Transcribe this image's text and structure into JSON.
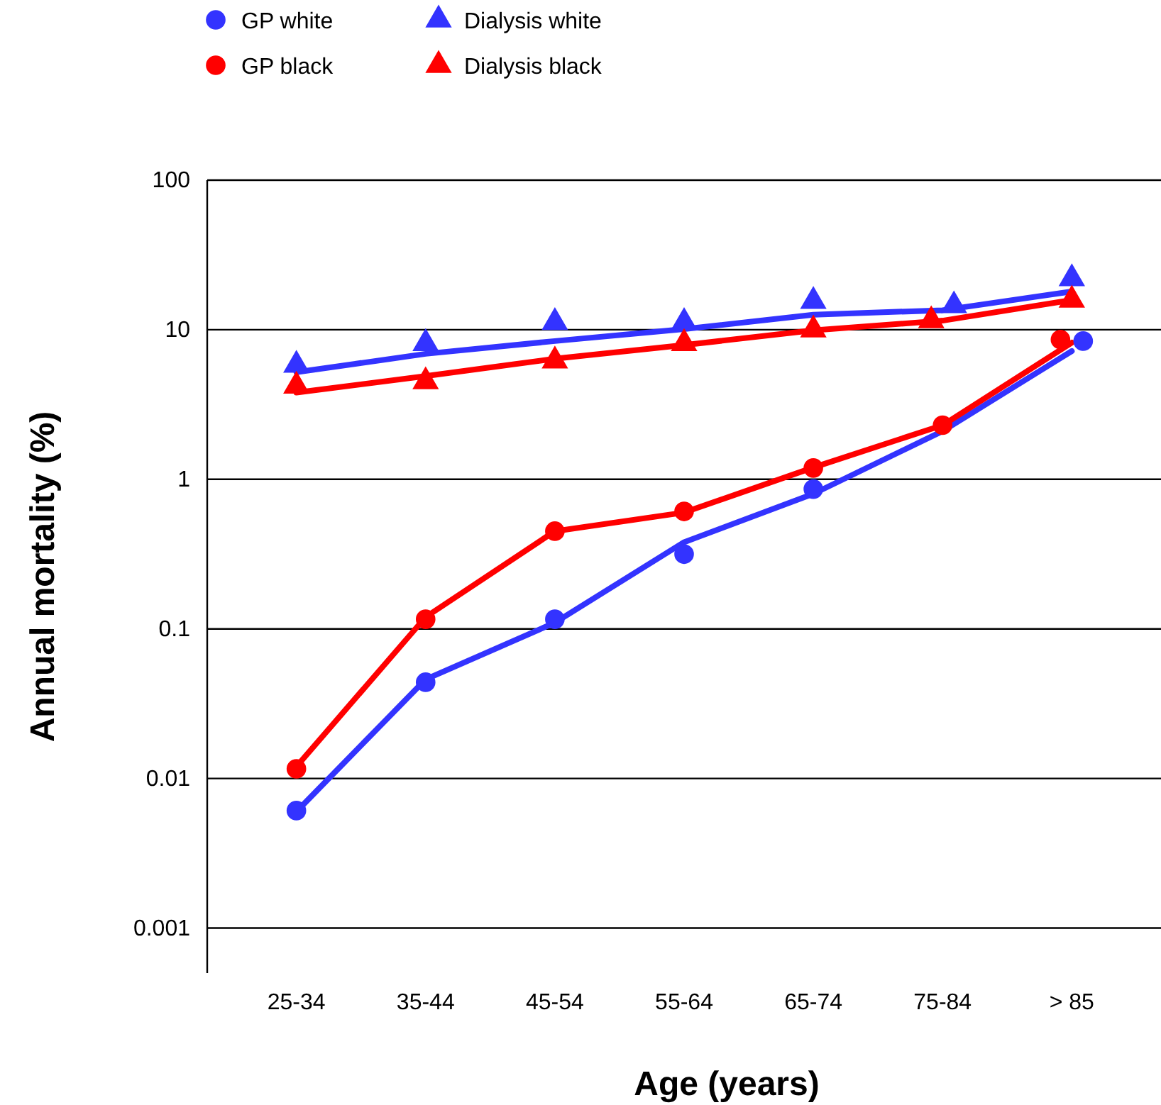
{
  "chart_data": {
    "type": "scatter",
    "xlabel": "Age (years)",
    "ylabel": "Annual mortality (%)",
    "categories": [
      "25-34",
      "35-44",
      "45-54",
      "55-64",
      "65-74",
      "75-84",
      "> 85"
    ],
    "log": "y",
    "ylim": [
      0.0005,
      100
    ],
    "yticks": [
      0.001,
      0.01,
      0.1,
      1,
      10,
      100
    ],
    "grid": "y",
    "legend": "top left",
    "series": [
      {
        "name": "GP white",
        "marker": "circle",
        "color": "#3333ff",
        "values": [
          0.0061,
          0.044,
          0.116,
          0.316,
          0.86,
          null,
          8.4
        ]
      },
      {
        "name": "GP black",
        "marker": "circle",
        "color": "#ff0000",
        "values": [
          0.0116,
          0.116,
          0.45,
          0.61,
          1.19,
          2.3,
          8.6
        ]
      },
      {
        "name": "Dialysis white",
        "marker": "triangle",
        "color": "#3333ff",
        "values": [
          5.8,
          8.1,
          11.2,
          11.2,
          15.5,
          14.5,
          22
        ]
      },
      {
        "name": "Dialysis black",
        "marker": "triangle",
        "color": "#ff0000",
        "values": [
          4.2,
          4.5,
          6.2,
          8.1,
          10,
          11.5,
          15.8
        ]
      },
      {
        "type": "line",
        "marker": "none",
        "color": "#3333ff",
        "values": [
          0.006,
          0.046,
          0.11,
          0.38,
          0.8,
          2.1,
          7.2
        ]
      },
      {
        "type": "line",
        "marker": "none",
        "color": "#ff0000",
        "values": [
          0.012,
          0.12,
          0.45,
          0.6,
          1.2,
          2.3,
          8.2
        ]
      },
      {
        "type": "line",
        "marker": "none",
        "color": "#3333ff",
        "values": [
          5.2,
          6.9,
          8.4,
          10.1,
          12.6,
          13.5,
          18
        ]
      },
      {
        "type": "line",
        "marker": "none",
        "color": "#ff0000",
        "values": [
          3.8,
          4.9,
          6.4,
          7.9,
          9.9,
          11.5,
          15.8
        ]
      }
    ]
  }
}
